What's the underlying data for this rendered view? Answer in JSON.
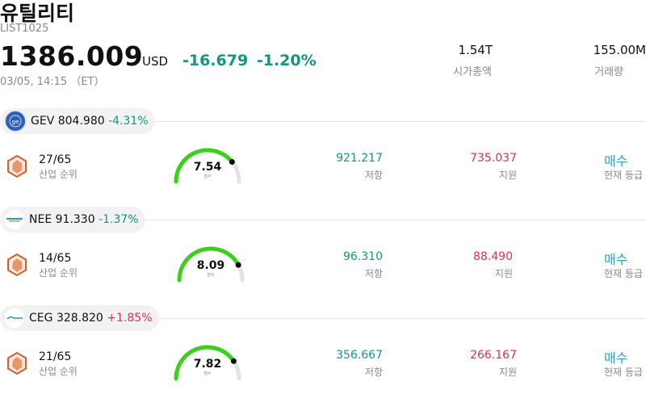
{
  "header": {
    "title": "유틸리티",
    "list_code": "LIST1025",
    "price": "1386.009",
    "currency": "USD",
    "change": "-16.679",
    "change_pct": "-1.20%",
    "timestamp": "03/05, 14:15 （ET）",
    "market_cap_value": "1.54T",
    "market_cap_label": "시가총액",
    "volume_value": "155.00M",
    "volume_label": "거래량"
  },
  "stocks": [
    {
      "symbol": "GEV",
      "price": "804.980",
      "change_pct": "-4.31%",
      "direction": "down",
      "logo_icon": "ge-vernova-logo",
      "rank": "27/65",
      "rank_label": "산업 순위",
      "score": "7.54",
      "score_label": "점수",
      "score_fraction": 0.754,
      "resistance": "921.217",
      "resistance_label": "저항",
      "support": "735.037",
      "support_label": "지원",
      "rating": "매수",
      "rating_label": "현재 등급"
    },
    {
      "symbol": "NEE",
      "price": "91.330",
      "change_pct": "-1.37%",
      "direction": "down",
      "logo_icon": "nextera-logo",
      "rank": "14/65",
      "rank_label": "산업 순위",
      "score": "8.09",
      "score_label": "점수",
      "score_fraction": 0.809,
      "resistance": "96.310",
      "resistance_label": "저항",
      "support": "88.490",
      "support_label": "지원",
      "rating": "매수",
      "rating_label": "현재 등급"
    },
    {
      "symbol": "CEG",
      "price": "328.820",
      "change_pct": "+1.85%",
      "direction": "up",
      "logo_icon": "constellation-logo",
      "rank": "21/65",
      "rank_label": "산업 순위",
      "score": "7.82",
      "score_label": "점수",
      "score_fraction": 0.782,
      "resistance": "356.667",
      "resistance_label": "저항",
      "support": "266.167",
      "support_label": "지원",
      "rating": "매수",
      "rating_label": "현재 등급"
    }
  ],
  "colors": {
    "gain": "#e0334a",
    "loss": "#14977e",
    "rating": "#2fa0c0",
    "gauge_fill": "#3ad01c",
    "gauge_track": "#e2e2e8"
  }
}
